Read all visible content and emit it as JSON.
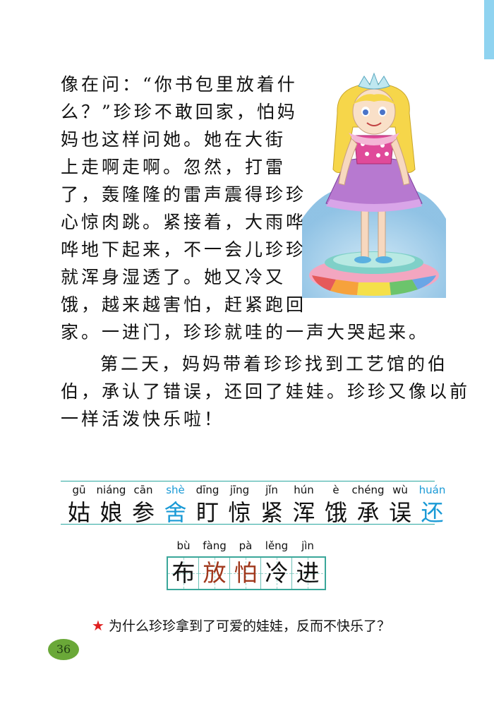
{
  "page": {
    "body_lines": [
      "像在问：“你书包里放着什",
      "么？”珍珍不敢回家，怕妈",
      "妈也这样问她。她在大街",
      "上走啊走啊。忽然，打雷",
      "了，轰隆隆的雷声震得珍珍",
      "心惊肉跳。紧接着，大雨哗",
      "哗地下起来，不一会儿珍珍",
      "就浑身湿透了。她又冷又",
      "饿，越来越害怕，赶紧跑回",
      "家。一进门，珍珍就哇的一声大哭起来。",
      "第二天，妈妈带着珍珍找到工艺馆的伯",
      "伯，承认了错误，还回了娃娃。珍珍又像以前",
      "一样活泼快乐啦！"
    ],
    "vocab_row": [
      {
        "pinyin": "gū",
        "char": "姑",
        "highlight": false
      },
      {
        "pinyin": "niáng",
        "char": "娘",
        "highlight": false
      },
      {
        "pinyin": "cān",
        "char": "参",
        "highlight": false
      },
      {
        "pinyin": "shè",
        "char": "舍",
        "highlight": true
      },
      {
        "pinyin": "dīng",
        "char": "盯",
        "highlight": false
      },
      {
        "pinyin": "jīng",
        "char": "惊",
        "highlight": false
      },
      {
        "pinyin": "jǐn",
        "char": "紧",
        "highlight": false
      },
      {
        "pinyin": "hún",
        "char": "浑",
        "highlight": false
      },
      {
        "pinyin": "è",
        "char": "饿",
        "highlight": false
      },
      {
        "pinyin": "chéng",
        "char": "承",
        "highlight": false
      },
      {
        "pinyin": "wù",
        "char": "误",
        "highlight": false
      },
      {
        "pinyin": "huán",
        "char": "还",
        "highlight": true
      }
    ],
    "writing_grid": [
      {
        "pinyin": "bù",
        "char": "布",
        "highlight": false
      },
      {
        "pinyin": "fàng",
        "char": "放",
        "highlight": true
      },
      {
        "pinyin": "pà",
        "char": "怕",
        "highlight": true
      },
      {
        "pinyin": "lěng",
        "char": "冷",
        "highlight": false
      },
      {
        "pinyin": "jìn",
        "char": "进",
        "highlight": false
      }
    ],
    "question": "为什么珍珍拿到了可爱的娃娃，反而不快乐了？",
    "page_number": "36",
    "colors": {
      "highlight_blue": "#1a9ad6",
      "highlight_brown": "#a0381c",
      "teal_rule": "#2aa7a0",
      "page_badge": "#6aa838",
      "star_red": "#e02020"
    }
  }
}
